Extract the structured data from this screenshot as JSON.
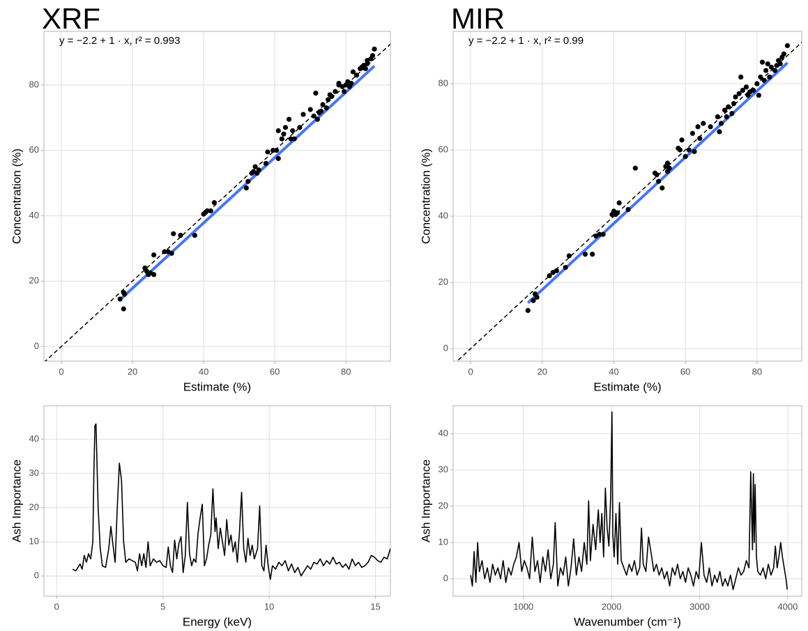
{
  "chart_data": [
    {
      "type": "scatter",
      "title": "XRF",
      "annotation": "y = −2.2 + 1 · x,  r² = 0.993",
      "x_label": "Estimate (%)",
      "y_label": "Concentration (%)",
      "xlim": [
        -4.9,
        92.5
      ],
      "ylim": [
        -4.5,
        96.4
      ],
      "xticks": [
        0,
        20,
        40,
        60,
        80
      ],
      "yticks": [
        0,
        20,
        40,
        60,
        80
      ],
      "grid": true,
      "color": "#000000",
      "fit": {
        "intercept": -2.2,
        "slope": 1,
        "range": [
          17,
          88
        ],
        "color": "#3366ff"
      },
      "reference_line": {
        "intercept": 0,
        "slope": 1,
        "color": "#000000"
      },
      "x": [
        16.5,
        17.5,
        17.5,
        17.8,
        23.5,
        24,
        24.5,
        25,
        26,
        26,
        29,
        30,
        31,
        31.5,
        33.5,
        37.5,
        40,
        40.5,
        41,
        42,
        43,
        52,
        52.5,
        53.5,
        54,
        54.5,
        55,
        55.5,
        57.5,
        58,
        59.5,
        60.5,
        61,
        61,
        62,
        62.5,
        63,
        64,
        64.5,
        65,
        65.5,
        67,
        68,
        70,
        71,
        71.5,
        72,
        72.5,
        73,
        73.5,
        74.5,
        75,
        75.5,
        76,
        77,
        78,
        78,
        79,
        79.5,
        80,
        80.5,
        81,
        81.5,
        82,
        83,
        84,
        84.5,
        85,
        85.5,
        86,
        86,
        87,
        87.5,
        88
      ],
      "values": [
        14.5,
        16.5,
        11.5,
        16,
        24,
        23,
        22,
        22.5,
        22,
        28,
        29,
        29,
        28.5,
        34.5,
        34,
        34,
        40.5,
        41,
        41.5,
        41.5,
        44,
        48.5,
        50.5,
        53,
        53.5,
        55,
        53,
        54,
        56,
        59.5,
        60,
        60,
        57.5,
        66,
        63.5,
        65,
        67,
        69.5,
        63.5,
        66,
        63.5,
        67,
        71,
        72.5,
        70.5,
        77.5,
        69.5,
        71.5,
        72,
        74,
        73,
        75.5,
        77,
        76.5,
        78,
        80,
        80.5,
        79.5,
        78,
        80,
        81,
        79.5,
        80.5,
        84,
        83,
        85,
        85.5,
        86,
        85,
        86.5,
        87.5,
        88,
        89,
        91
      ]
    },
    {
      "type": "scatter",
      "title": "MIR",
      "annotation": "y = −2.2 + 1 · x,  r² = 0.99",
      "x_label": "Estimate (%)",
      "y_label": "Concentration (%)",
      "xlim": [
        -4.9,
        92.5
      ],
      "ylim": [
        -3.8,
        95.8
      ],
      "xticks": [
        0,
        20,
        40,
        60,
        80
      ],
      "yticks": [
        0,
        20,
        40,
        60,
        80
      ],
      "grid": true,
      "color": "#000000",
      "fit": {
        "intercept": -2.2,
        "slope": 1,
        "range": [
          16,
          88.5
        ],
        "color": "#3366ff"
      },
      "reference_line": {
        "intercept": 0,
        "slope": 1,
        "color": "#000000"
      },
      "x": [
        16,
        17.5,
        18,
        18.5,
        22,
        23,
        24,
        26.5,
        27.5,
        32,
        34,
        35,
        36,
        37,
        39.5,
        40,
        40.5,
        41,
        41.5,
        44,
        46,
        51.5,
        52,
        52.5,
        53.5,
        54.5,
        55,
        55,
        55.5,
        58,
        58.5,
        59,
        60,
        61,
        62,
        62.5,
        63.5,
        64,
        65,
        67,
        69,
        69.5,
        70,
        71,
        71.5,
        72,
        73,
        73.5,
        74,
        75,
        75.5,
        76,
        77,
        77.5,
        78,
        79,
        80,
        80.5,
        81,
        81.5,
        82,
        82.5,
        83,
        83.5,
        84,
        85,
        85.5,
        86,
        86.5,
        87,
        87.5,
        88.5
      ],
      "values": [
        11.5,
        14.5,
        16.5,
        15.5,
        22,
        23,
        23.5,
        24.5,
        28,
        28.5,
        28.5,
        34,
        34.5,
        34.5,
        40.5,
        41.5,
        40.5,
        41,
        44,
        42,
        54.5,
        53,
        52.5,
        50.5,
        48.5,
        55,
        53.5,
        56,
        54.5,
        60.5,
        60,
        63,
        58,
        60,
        65,
        59.5,
        67,
        63.5,
        68,
        67,
        70,
        65.5,
        68,
        72,
        70,
        73,
        71,
        74,
        76,
        77,
        82,
        78,
        79,
        76.5,
        77.5,
        78,
        80,
        76.5,
        82,
        86.5,
        81,
        84,
        86,
        82,
        85,
        84,
        85.5,
        87,
        86,
        88,
        89,
        91.5
      ]
    },
    {
      "type": "line",
      "x_label": "Energy (keV)",
      "y_label": "Ash Importance",
      "xlim": [
        -0.6,
        15.7
      ],
      "ylim": [
        -5.9,
        49.8
      ],
      "xticks": [
        0,
        5,
        10,
        15
      ],
      "yticks": [
        0,
        10,
        20,
        30,
        40
      ],
      "grid": true,
      "color": "#000000",
      "x": [
        0.75,
        0.9,
        1.0,
        1.1,
        1.2,
        1.3,
        1.4,
        1.5,
        1.6,
        1.7,
        1.75,
        1.8,
        1.85,
        1.95,
        2.05,
        2.15,
        2.3,
        2.45,
        2.55,
        2.65,
        2.75,
        2.85,
        2.95,
        3.05,
        3.15,
        3.25,
        3.4,
        3.55,
        3.7,
        3.8,
        3.9,
        4.0,
        4.1,
        4.2,
        4.3,
        4.4,
        4.55,
        4.7,
        4.85,
        5.0,
        5.15,
        5.25,
        5.35,
        5.45,
        5.55,
        5.65,
        5.75,
        5.85,
        5.95,
        6.05,
        6.15,
        6.25,
        6.35,
        6.45,
        6.55,
        6.65,
        6.75,
        6.85,
        6.95,
        7.05,
        7.15,
        7.25,
        7.35,
        7.45,
        7.5,
        7.6,
        7.7,
        7.8,
        7.9,
        8.0,
        8.1,
        8.2,
        8.3,
        8.4,
        8.5,
        8.6,
        8.7,
        8.8,
        8.9,
        9.0,
        9.1,
        9.2,
        9.3,
        9.45,
        9.55,
        9.65,
        9.75,
        9.85,
        9.95,
        10.05,
        10.15,
        10.3,
        10.45,
        10.6,
        10.75,
        10.9,
        11.05,
        11.2,
        11.35,
        11.5,
        11.65,
        11.8,
        11.95,
        12.1,
        12.25,
        12.4,
        12.55,
        12.7,
        12.85,
        13.0,
        13.15,
        13.3,
        13.45,
        13.6,
        13.75,
        13.9,
        14.05,
        14.2,
        14.35,
        14.5,
        14.65,
        14.8,
        14.95,
        15.1,
        15.25,
        15.4,
        15.55,
        15.7
      ],
      "values": [
        2,
        1.5,
        2.5,
        3.5,
        2,
        6,
        4,
        6.5,
        5,
        10,
        30,
        44,
        44.5,
        20,
        8,
        3,
        2.5,
        8,
        14.5,
        9,
        4,
        20,
        33,
        28,
        10,
        4,
        5,
        4.5,
        4,
        1.5,
        6.5,
        3,
        6.5,
        2.5,
        10,
        3,
        5,
        4,
        4.5,
        3,
        2.5,
        8.5,
        3,
        1,
        10.5,
        5,
        9.5,
        11.5,
        1,
        6,
        21.5,
        6.5,
        3,
        5,
        4,
        12.5,
        17,
        21,
        3,
        5,
        9,
        12,
        25.5,
        13,
        17,
        8,
        14,
        10,
        6,
        16.5,
        9,
        12,
        7,
        10,
        4,
        13,
        24.5,
        8,
        4,
        11,
        6,
        9,
        5,
        8,
        20.5,
        3,
        1.5,
        9,
        3,
        -1,
        3,
        2,
        4,
        3,
        4.5,
        1.5,
        3.5,
        1,
        2.5,
        0,
        1.5,
        3,
        2,
        4,
        3.5,
        5,
        3,
        4.5,
        3.5,
        5.5,
        3.5,
        4,
        2.5,
        3.5,
        2,
        5,
        3,
        4,
        2.5,
        3,
        4,
        6,
        5.5,
        4.5,
        4,
        5.5,
        5,
        8
      ]
    },
    {
      "type": "line",
      "x_label": "Wavenumber (cm⁻¹)",
      "y_label": "Ash Importance",
      "xlim": [
        202,
        4159
      ],
      "ylim": [
        -4.8,
        47.7
      ],
      "xticks": [
        1000,
        2000,
        3000,
        4000
      ],
      "yticks": [
        0,
        10,
        20,
        30,
        40
      ],
      "grid": true,
      "color": "#000000",
      "x": [
        400,
        420,
        440,
        460,
        480,
        500,
        530,
        560,
        590,
        620,
        650,
        680,
        710,
        740,
        770,
        800,
        830,
        860,
        890,
        920,
        950,
        980,
        1010,
        1040,
        1070,
        1100,
        1130,
        1160,
        1190,
        1220,
        1250,
        1280,
        1310,
        1340,
        1360,
        1390,
        1420,
        1450,
        1480,
        1510,
        1540,
        1570,
        1600,
        1630,
        1660,
        1690,
        1720,
        1740,
        1760,
        1790,
        1820,
        1850,
        1870,
        1890,
        1910,
        1930,
        1950,
        1970,
        1990,
        2005,
        2015,
        2030,
        2050,
        2070,
        2090,
        2110,
        2140,
        2170,
        2200,
        2230,
        2260,
        2290,
        2320,
        2340,
        2360,
        2390,
        2420,
        2450,
        2480,
        2510,
        2540,
        2570,
        2600,
        2630,
        2660,
        2690,
        2720,
        2750,
        2780,
        2810,
        2840,
        2870,
        2900,
        2930,
        2960,
        2990,
        3020,
        3050,
        3080,
        3110,
        3140,
        3170,
        3200,
        3230,
        3260,
        3290,
        3320,
        3350,
        3380,
        3410,
        3440,
        3470,
        3500,
        3530,
        3560,
        3580,
        3600,
        3610,
        3620,
        3630,
        3645,
        3660,
        3690,
        3720,
        3750,
        3780,
        3810,
        3840,
        3860,
        3880,
        3900,
        3920,
        3940,
        3960,
        3980,
        3995
      ],
      "values": [
        1,
        -2,
        7.5,
        -1,
        10,
        2,
        5,
        0,
        3,
        -1,
        4,
        1,
        3,
        0,
        5,
        -1,
        3,
        1,
        4,
        6,
        10,
        2,
        5,
        3,
        0,
        11.5,
        2,
        5,
        -1,
        6,
        2,
        8,
        0,
        4,
        15.5,
        -2,
        3,
        1,
        6,
        -2,
        3,
        11,
        1,
        6,
        2,
        10,
        4,
        21.5,
        5,
        15,
        8,
        19,
        10,
        18,
        6,
        25,
        14,
        9,
        22.5,
        46,
        12,
        6,
        18,
        4,
        21,
        5,
        3,
        1,
        4,
        2,
        5,
        1,
        3,
        14,
        4,
        2,
        11.5,
        7,
        2,
        4,
        1,
        3,
        0,
        2,
        -2,
        3,
        1,
        4,
        0,
        2,
        -1,
        3,
        1,
        -2,
        2,
        0,
        10,
        1,
        -1,
        3,
        -2,
        1,
        -1,
        2,
        -2,
        0,
        -2,
        1,
        -3,
        0,
        3,
        1,
        2,
        5,
        3,
        29.5,
        8,
        29,
        10,
        26,
        6,
        2,
        1,
        3,
        0,
        4,
        1,
        3,
        9,
        3,
        6,
        10,
        6,
        3,
        0,
        -3
      ]
    }
  ]
}
